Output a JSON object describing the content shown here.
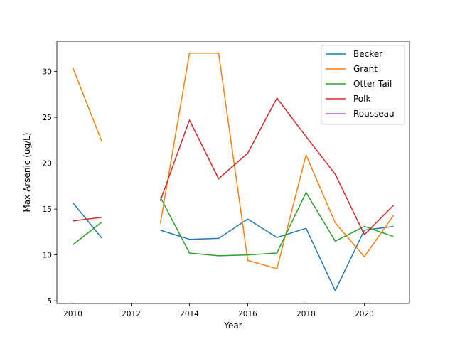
{
  "chart_data": {
    "type": "line",
    "xlabel": "Year",
    "ylabel": "Max Arsenic (ug/L)",
    "xlim": [
      2009.45,
      2021.55
    ],
    "ylim": [
      4.7,
      33.3
    ],
    "xticks": [
      2010,
      2012,
      2014,
      2016,
      2018,
      2020
    ],
    "yticks": [
      5,
      10,
      15,
      20,
      25,
      30
    ],
    "grid": false,
    "legend_position": "upper-right",
    "x": [
      2010,
      2011,
      2012,
      2013,
      2014,
      2015,
      2016,
      2017,
      2018,
      2019,
      2020,
      2021
    ],
    "series": [
      {
        "name": "Becker",
        "color": "#1f77b4",
        "values": [
          15.7,
          11.8,
          null,
          12.7,
          11.7,
          11.8,
          13.9,
          11.9,
          12.9,
          6.1,
          12.7,
          13.1
        ]
      },
      {
        "name": "Grant",
        "color": "#ff7f0e",
        "values": [
          30.4,
          22.3,
          null,
          13.4,
          32.0,
          32.0,
          9.4,
          8.5,
          20.9,
          13.5,
          9.8,
          14.3
        ]
      },
      {
        "name": "Otter Tail",
        "color": "#2ca02c",
        "values": [
          11.1,
          13.6,
          null,
          16.3,
          10.2,
          9.9,
          10.0,
          10.2,
          16.8,
          11.5,
          13.1,
          12.0
        ]
      },
      {
        "name": "Polk",
        "color": "#d62728",
        "values": [
          13.7,
          14.1,
          null,
          15.9,
          24.7,
          18.3,
          21.1,
          27.1,
          22.9,
          18.8,
          12.2,
          15.4
        ]
      },
      {
        "name": "Rousseau",
        "color": "#9467bd",
        "values": [
          null,
          null,
          null,
          null,
          null,
          null,
          null,
          null,
          null,
          null,
          null,
          null
        ]
      }
    ]
  }
}
